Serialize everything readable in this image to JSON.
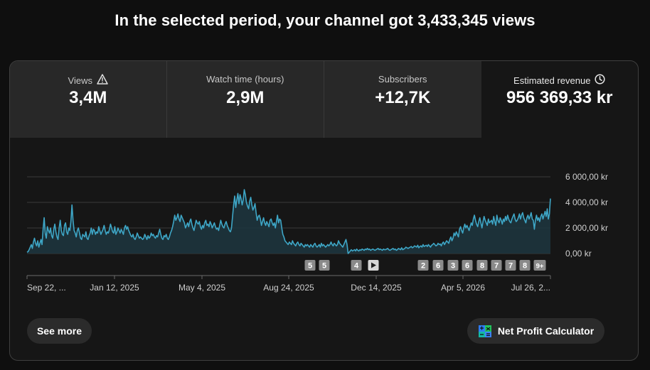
{
  "headline": "In the selected period, your channel got 3,433,345 views",
  "metrics": [
    {
      "label": "Views",
      "value": "3,4M",
      "icon": "warning-icon"
    },
    {
      "label": "Watch time (hours)",
      "value": "2,9M"
    },
    {
      "label": "Subscribers",
      "value": "+12,7K"
    },
    {
      "label": "Estimated revenue",
      "value": "956 369,33 kr",
      "icon": "clock-icon"
    }
  ],
  "chart_data": {
    "type": "area",
    "y_tick_labels": [
      "6 000,00 kr",
      "4 000,00 kr",
      "2 000,00 kr",
      "0,00 kr"
    ],
    "y_ticks": [
      6000,
      4000,
      2000,
      0
    ],
    "ylim": [
      0,
      6000
    ],
    "x_tick_labels": [
      "Sep 22, ...",
      "Jan 12, 2025",
      "May 4, 2025",
      "Aug 24, 2025",
      "Dec 14, 2025",
      "Apr 5, 2026",
      "Jul 26, 2..."
    ],
    "grid": true,
    "color": "#3ea6c6",
    "values": [
      100,
      150,
      300,
      500,
      700,
      400,
      900,
      1200,
      800,
      600,
      1000,
      500,
      800,
      1100,
      700,
      1900,
      2800,
      1600,
      1200,
      2100,
      1800,
      1600,
      2000,
      1400,
      1200,
      1900,
      2300,
      1700,
      1300,
      1100,
      2000,
      2600,
      1800,
      1500,
      1400,
      2200,
      2400,
      1700,
      1500,
      2000,
      1800,
      2500,
      3800,
      2600,
      1800,
      1600,
      1300,
      1800,
      2000,
      1600,
      1200,
      1100,
      1500,
      1400,
      1300,
      1700,
      1200,
      1100,
      1400,
      1600,
      2000,
      1500,
      1900,
      1800,
      1500,
      1700,
      1600,
      2100,
      1800,
      1500,
      1700,
      1900,
      2200,
      1800,
      1500,
      1700,
      1600,
      1900,
      2300,
      2000,
      1700,
      1600,
      2100,
      1500,
      1700,
      2000,
      1800,
      1600,
      1900,
      1700,
      1500,
      2000,
      2200,
      1900,
      2100,
      1800,
      1600,
      1400,
      1300,
      1500,
      1200,
      1100,
      1300,
      1600,
      1400,
      1200,
      1300,
      1200,
      1100,
      1200,
      1500,
      1300,
      1100,
      1400,
      1200,
      1300,
      1600,
      1400,
      1500,
      1300,
      1200,
      1400,
      1300,
      1600,
      1900,
      1500,
      1200,
      1100,
      1400,
      1300,
      1500,
      1200,
      1100,
      1300,
      1600,
      1800,
      2100,
      2500,
      3000,
      2600,
      2800,
      3100,
      2700,
      2500,
      3000,
      2800,
      2600,
      2400,
      2000,
      2200,
      2400,
      2100,
      2500,
      2700,
      2300,
      2000,
      1800,
      2200,
      2600,
      2400,
      2300,
      2500,
      2100,
      1900,
      2200,
      2000,
      2400,
      2600,
      2200,
      2300,
      2100,
      2500,
      2300,
      2000,
      2200,
      2400,
      2100,
      1900,
      2000,
      1800,
      2200,
      2600,
      2300,
      2100,
      2000,
      2300,
      2500,
      2200,
      2000,
      1800,
      1700,
      2000,
      2900,
      3800,
      4500,
      3600,
      4200,
      4700,
      3900,
      4600,
      4300,
      3800,
      4200,
      5000,
      4600,
      4000,
      3700,
      3500,
      4100,
      4400,
      3800,
      3400,
      3600,
      3900,
      3200,
      2600,
      2900,
      3000,
      2700,
      2200,
      2500,
      2800,
      2400,
      2200,
      2500,
      2300,
      2100,
      2600,
      2700,
      2400,
      2200,
      2400,
      2000,
      2500,
      3000,
      2400,
      2700,
      2600,
      2000,
      1500,
      1300,
      1000,
      900,
      800,
      700,
      900,
      800,
      700,
      1000,
      800,
      700,
      600,
      800,
      900,
      700,
      600,
      800,
      700,
      600,
      500,
      700,
      600,
      700,
      600,
      500,
      700,
      600,
      500,
      700,
      800,
      600,
      500,
      600,
      700,
      500,
      800,
      600,
      700,
      600,
      500,
      600,
      700,
      600,
      700,
      900,
      700,
      600,
      800,
      700,
      600,
      700,
      1000,
      800,
      700,
      600,
      500,
      700,
      900,
      1100,
      700,
      0,
      100,
      200,
      300,
      200,
      250,
      300,
      200,
      350,
      250,
      200,
      300,
      250,
      350,
      300,
      250,
      350,
      300,
      400,
      300,
      350,
      250,
      300,
      350,
      300,
      250,
      300,
      350,
      400,
      300,
      350,
      300,
      250,
      350,
      300,
      300,
      350,
      400,
      300,
      250,
      300,
      350,
      400,
      300,
      350,
      250,
      300,
      400,
      350,
      300,
      450,
      300,
      350,
      400,
      500,
      450,
      400,
      450,
      500,
      550,
      450,
      500,
      600,
      550,
      500,
      650,
      450,
      550,
      600,
      500,
      700,
      550,
      600,
      650,
      550,
      700,
      600,
      500,
      650,
      700,
      800,
      700,
      600,
      650,
      800,
      700,
      750,
      600,
      800,
      900,
      700,
      850,
      1000,
      900,
      800,
      1100,
      1300,
      1000,
      1200,
      1600,
      1400,
      1700,
      1500,
      1300,
      1900,
      2100,
      1800,
      1600,
      2000,
      2300,
      2000,
      2200,
      2000,
      1800,
      2100,
      2400,
      2200,
      2700,
      3000,
      2600,
      2300,
      2100,
      2500,
      2800,
      2400,
      2000,
      2500,
      2900,
      2600,
      2400,
      2200,
      2700,
      2400,
      2500,
      2600,
      2300,
      2900,
      2500,
      2200,
      3000,
      2600,
      2400,
      2800,
      2600,
      2300,
      2700,
      2500,
      2900,
      2600,
      3000,
      2700,
      2500,
      2400,
      2700,
      2900,
      3100,
      2700,
      2500,
      2600,
      2800,
      3100,
      2700,
      3000,
      3200,
      2800,
      2600,
      2400,
      2800,
      3000,
      2700,
      2900,
      3200,
      2700,
      2600,
      1900,
      2600,
      3000,
      2600,
      2800,
      2500,
      2900,
      3100,
      2700,
      3000,
      3300,
      2900,
      3500,
      2700,
      3100,
      4300
    ]
  },
  "milestones": [
    {
      "label": "5"
    },
    {
      "label": "5"
    },
    {
      "label": "4"
    },
    {
      "label": "play-icon"
    },
    {
      "label": "2"
    },
    {
      "label": "6"
    },
    {
      "label": "3"
    },
    {
      "label": "6"
    },
    {
      "label": "8"
    },
    {
      "label": "7"
    },
    {
      "label": "7"
    },
    {
      "label": "8"
    },
    {
      "label": "9+"
    }
  ],
  "buttons": {
    "see_more": "See more",
    "net_profit": "Net Profit Calculator"
  }
}
